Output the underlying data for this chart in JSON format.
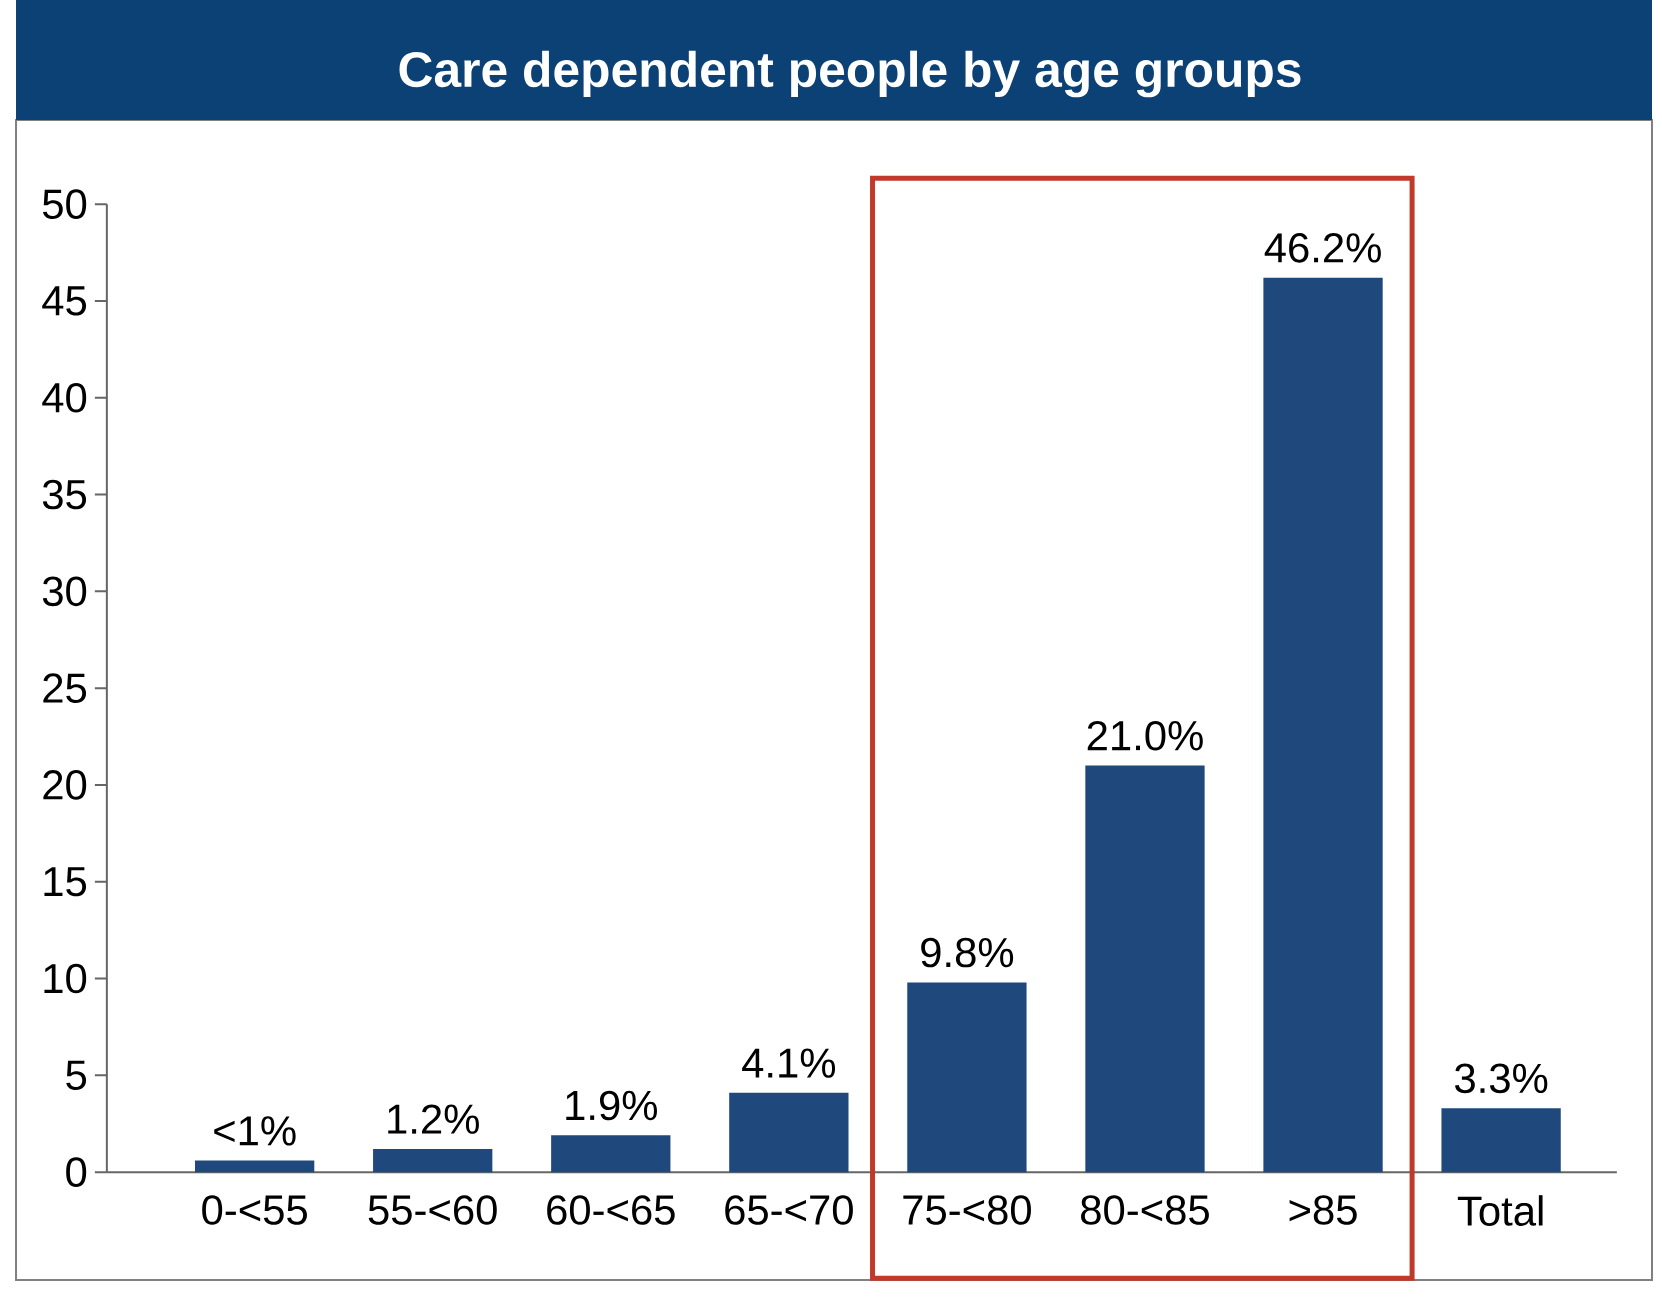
{
  "chart_data": {
    "type": "bar",
    "title": "Care dependent people by age groups",
    "categories": [
      "0-<55",
      "55-<60",
      "60-<65",
      "65-<70",
      "75-<80",
      "80-<85",
      ">85",
      "Total"
    ],
    "values": [
      0.6,
      1.2,
      1.9,
      4.1,
      9.8,
      21.0,
      46.2,
      3.3
    ],
    "value_labels": [
      "<1%",
      "1.2%",
      "1.9%",
      "4.1%",
      "9.8%",
      "21.0%",
      "46.2%",
      "3.3%"
    ],
    "color": "#1f497d",
    "ylim": [
      0,
      50
    ],
    "yticks": [
      0,
      5,
      10,
      15,
      20,
      25,
      30,
      35,
      40,
      45,
      50
    ],
    "grid": false
  }
}
